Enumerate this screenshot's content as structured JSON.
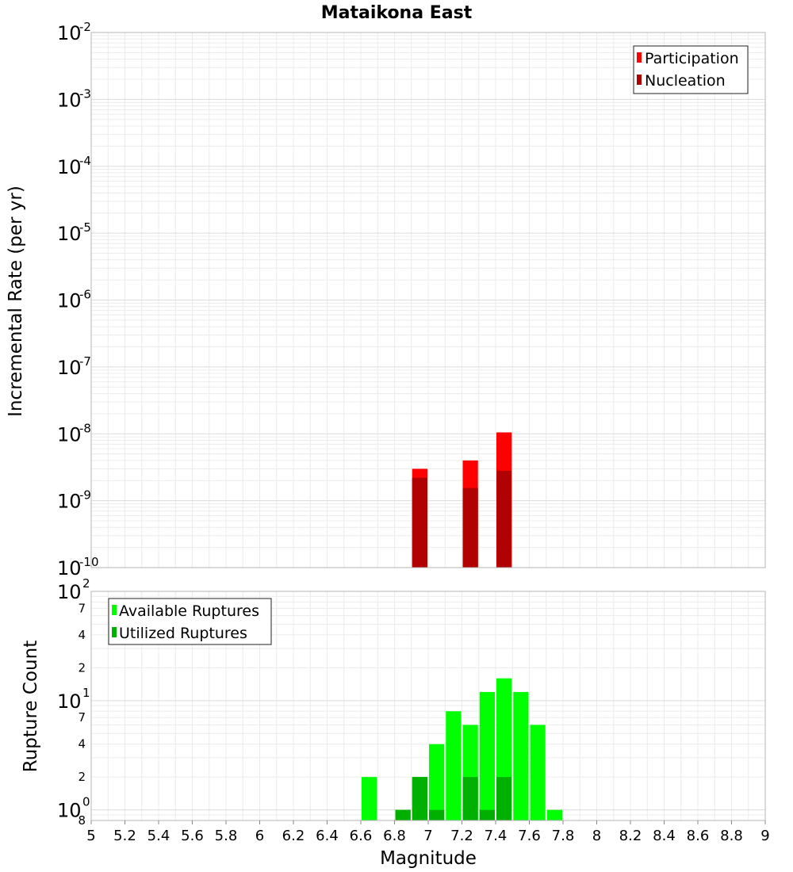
{
  "chart_data": [
    {
      "type": "bar",
      "title": "Mataikona East",
      "ylabel": "Incremental Rate (per yr)",
      "xlabel": "",
      "yscale": "log",
      "ylim": [
        1e-10,
        0.01
      ],
      "xlim": [
        5,
        9
      ],
      "grid": true,
      "legend_placement": "top-right",
      "bin_width": 0.1,
      "series": [
        {
          "name": "Participation",
          "color": "#ff0000",
          "x": [
            6.95,
            7.25,
            7.45
          ],
          "values": [
            3e-09,
            4e-09,
            1.05e-08
          ]
        },
        {
          "name": "Nucleation",
          "color": "#b00000",
          "x": [
            6.95,
            7.25,
            7.45
          ],
          "values": [
            2.2e-09,
            1.55e-09,
            2.8e-09
          ]
        }
      ],
      "y_ticks": [
        {
          "base": "10",
          "exp": "-2",
          "value": 0.01
        },
        {
          "base": "10",
          "exp": "-3",
          "value": 0.001
        },
        {
          "base": "10",
          "exp": "-4",
          "value": 0.0001
        },
        {
          "base": "10",
          "exp": "-5",
          "value": 1e-05
        },
        {
          "base": "10",
          "exp": "-6",
          "value": 1e-06
        },
        {
          "base": "10",
          "exp": "-7",
          "value": 1e-07
        },
        {
          "base": "10",
          "exp": "-8",
          "value": 1e-08
        },
        {
          "base": "10",
          "exp": "-9",
          "value": 1e-09
        },
        {
          "base": "10",
          "exp": "-10",
          "value": 1e-10
        }
      ]
    },
    {
      "type": "bar",
      "title": "",
      "ylabel": "Rupture Count",
      "xlabel": "Magnitude",
      "yscale": "log",
      "ylim": [
        0.8,
        100
      ],
      "xlim": [
        5,
        9
      ],
      "grid": true,
      "legend_placement": "top-left",
      "bin_width": 0.1,
      "series": [
        {
          "name": "Available Ruptures",
          "color": "#00ff00",
          "x": [
            6.65,
            6.85,
            6.95,
            7.05,
            7.15,
            7.25,
            7.35,
            7.45,
            7.55,
            7.65,
            7.75
          ],
          "values": [
            2,
            1,
            2,
            4,
            8,
            6,
            12,
            16,
            12,
            6,
            1
          ]
        },
        {
          "name": "Utilized Ruptures",
          "color": "#00b000",
          "x": [
            6.85,
            6.95,
            7.05,
            7.25,
            7.35,
            7.45
          ],
          "values": [
            1,
            2,
            1,
            2,
            1,
            2
          ]
        }
      ],
      "y_ticks": [
        {
          "base": "10",
          "exp": "2",
          "value": 100
        },
        {
          "base": "10",
          "exp": "1",
          "value": 10
        },
        {
          "base": "10",
          "exp": "0",
          "value": 1
        }
      ],
      "y_minor_labels": [
        {
          "label": "7",
          "value": 70
        },
        {
          "label": "4",
          "value": 40
        },
        {
          "label": "2",
          "value": 20
        },
        {
          "label": "7",
          "value": 7
        },
        {
          "label": "4",
          "value": 4
        },
        {
          "label": "2",
          "value": 2
        },
        {
          "label": "8",
          "value": 0.8
        }
      ],
      "x_ticks": [
        "5",
        "5.2",
        "5.4",
        "5.6",
        "5.8",
        "6",
        "6.2",
        "6.4",
        "6.6",
        "6.8",
        "7",
        "7.2",
        "7.4",
        "7.6",
        "7.8",
        "8",
        "8.2",
        "8.4",
        "8.6",
        "8.8",
        "9"
      ]
    }
  ]
}
